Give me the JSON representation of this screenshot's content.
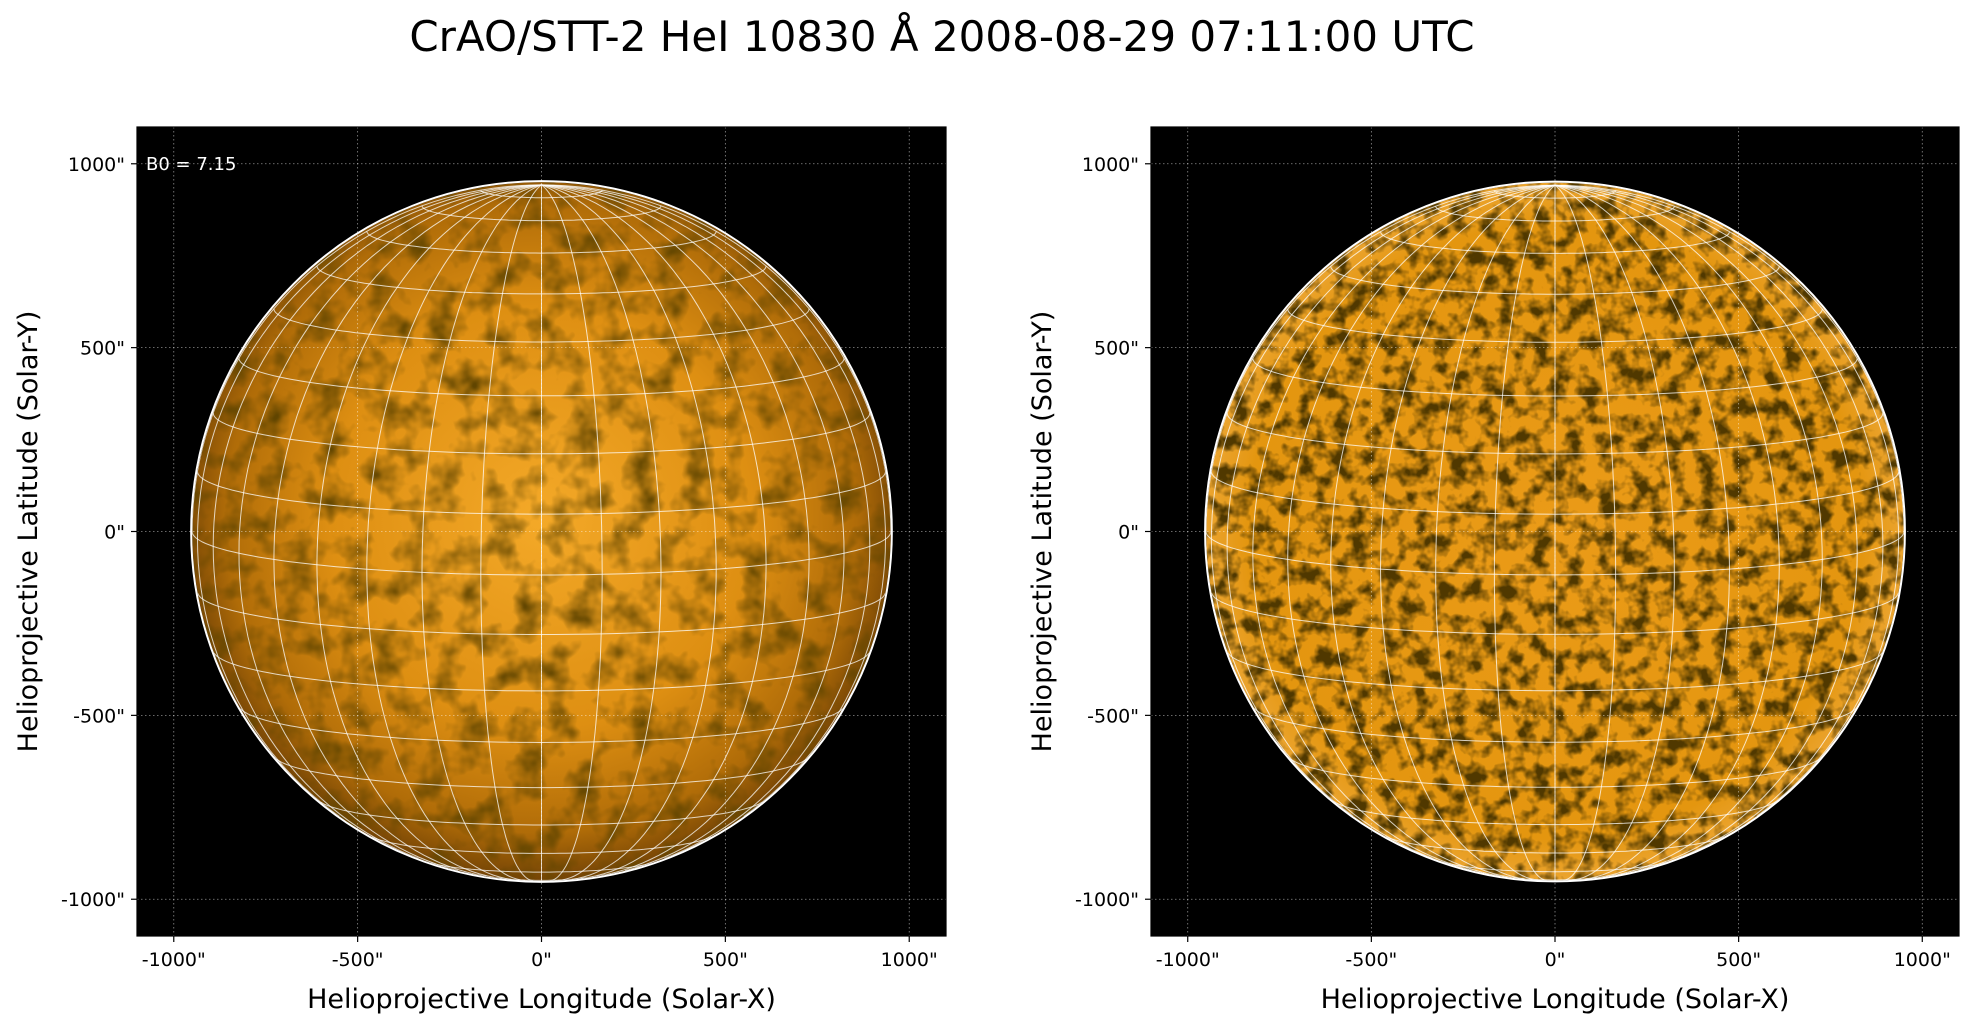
{
  "figure": {
    "title": "CrAO/STT-2 HeI 10830 Å 2008-08-29 07:11:00 UTC"
  },
  "panels": [
    {
      "id": "left",
      "annotation": "B0 = 7.15",
      "xlabel": "Helioprojective Longitude (Solar-X)",
      "ylabel": "Helioprojective Latitude (Solar-Y)",
      "x_ticks": [
        "-1000\"",
        "-500\"",
        "0\"",
        "500\"",
        "1000\""
      ],
      "y_ticks": [
        "1000\"",
        "500\"",
        "0\"",
        "-500\"",
        "-1000\""
      ],
      "xlim": [
        -1100,
        1100
      ],
      "ylim": [
        -1100,
        1100
      ],
      "disk_radius_arcsec": 950,
      "style": "limb-darkened"
    },
    {
      "id": "right",
      "annotation": "",
      "xlabel": "Helioprojective Longitude (Solar-X)",
      "ylabel": "Helioprojective Latitude (Solar-Y)",
      "x_ticks": [
        "-1000\"",
        "-500\"",
        "0\"",
        "500\"",
        "1000\""
      ],
      "y_ticks": [
        "1000\"",
        "500\"",
        "0\"",
        "-500\"",
        "-1000\""
      ],
      "xlim": [
        -1100,
        1100
      ],
      "ylim": [
        -1100,
        1100
      ],
      "disk_radius_arcsec": 950,
      "style": "flattened"
    }
  ],
  "colors": {
    "background": "#000000",
    "disk_center": "#f2a21e",
    "disk_mid": "#d88a0e",
    "disk_limb": "#6b3c05",
    "grid": "#ffffff"
  }
}
